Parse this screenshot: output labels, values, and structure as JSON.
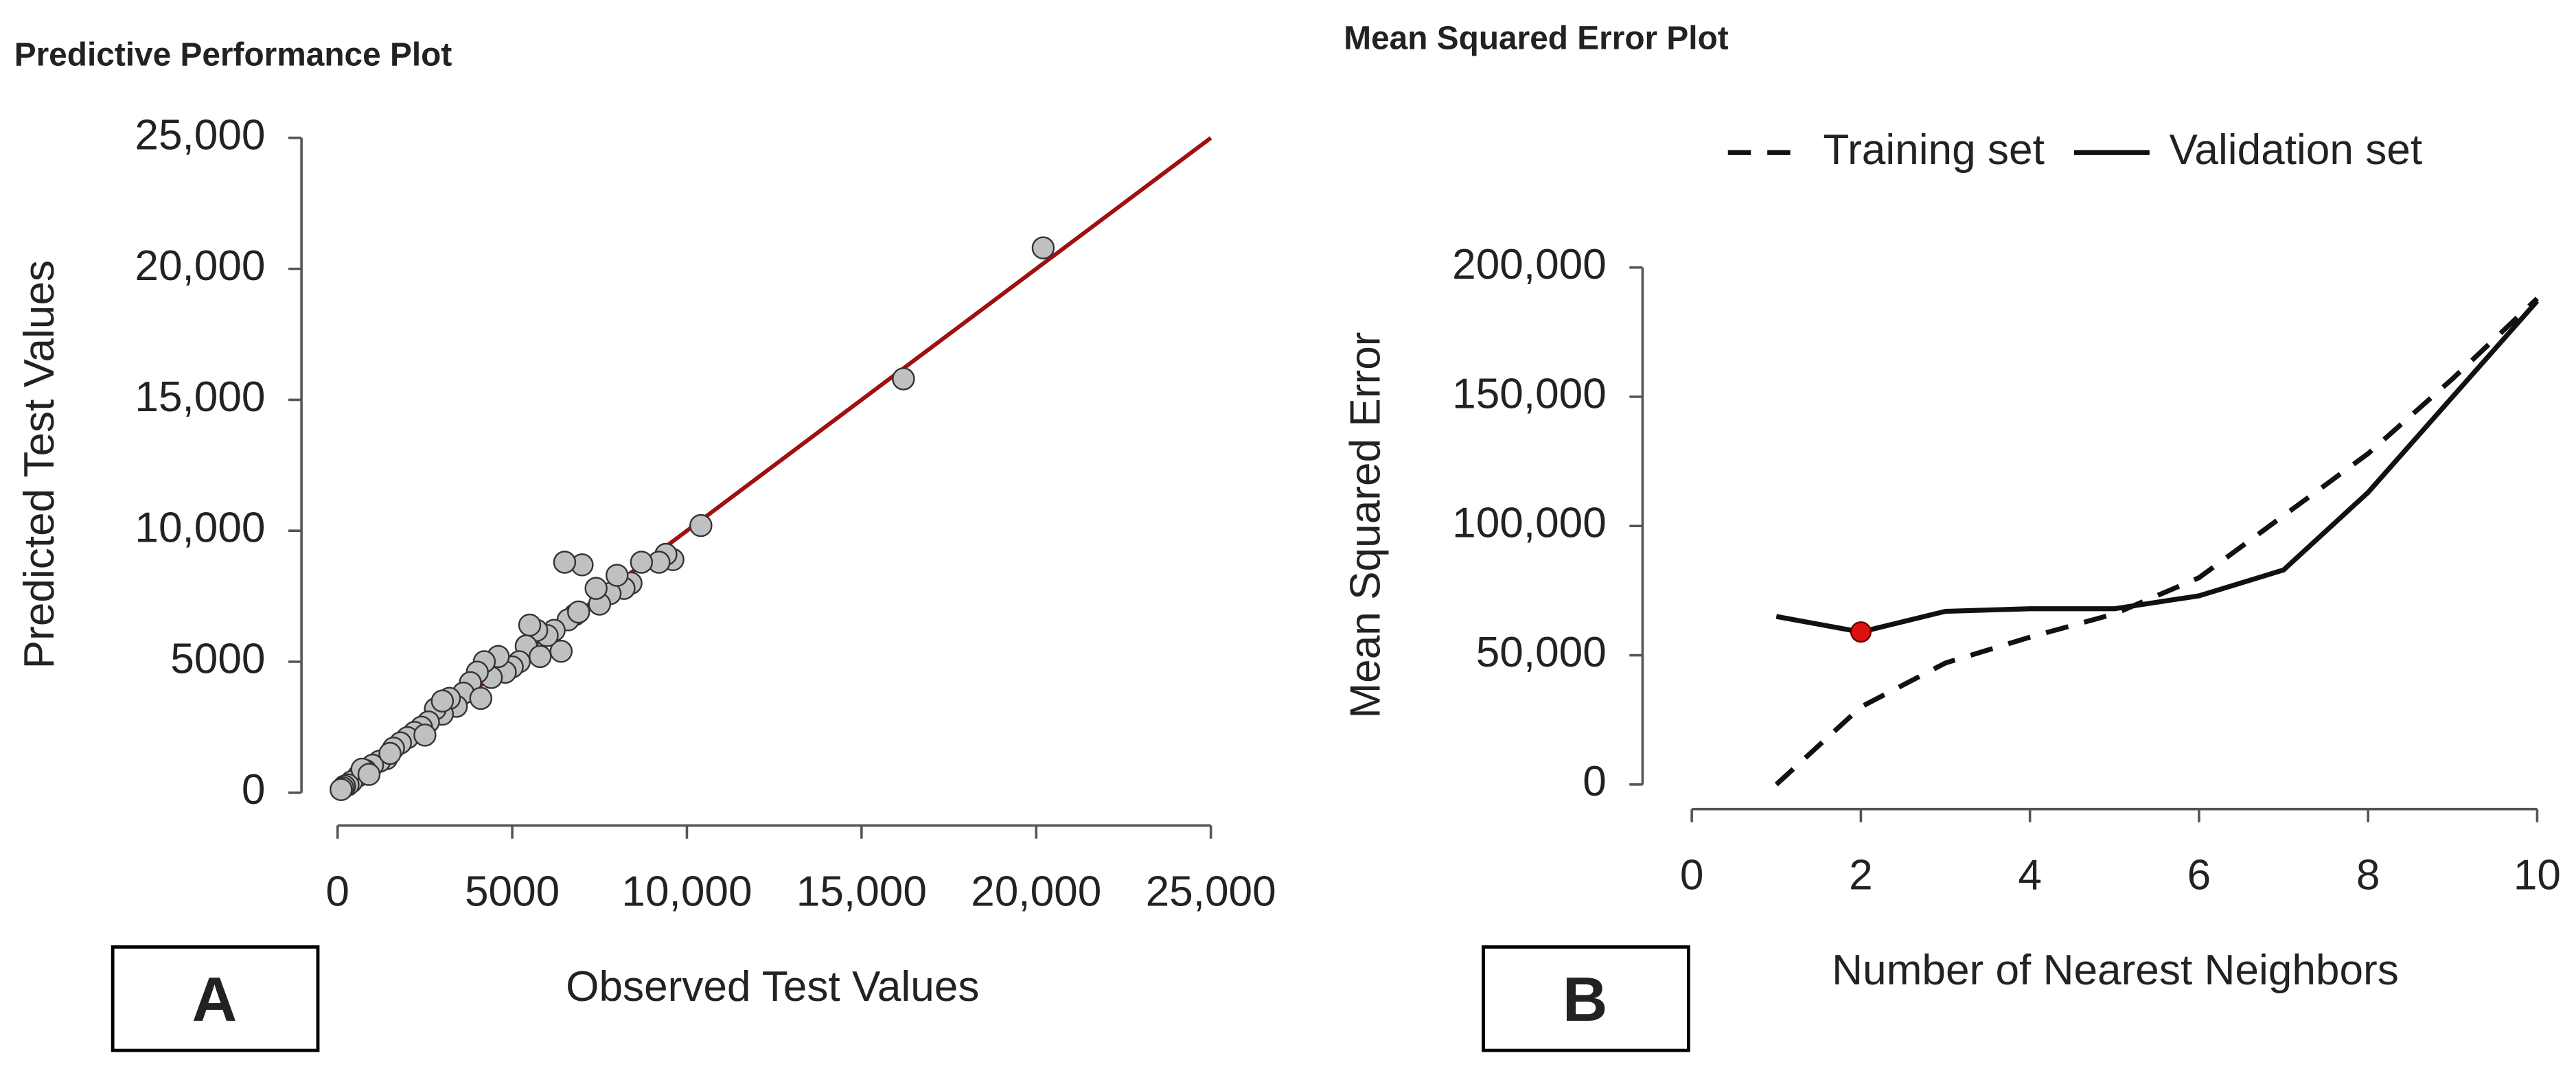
{
  "chart_data": [
    {
      "type": "scatter",
      "title": "Predictive Performance Plot",
      "panel_label": "A",
      "x_label": "Observed Test Values",
      "y_label": "Predicted Test Values",
      "x": [
        20200,
        16200,
        10400,
        9600,
        9400,
        9200,
        8700,
        8400,
        8200,
        7800,
        7500,
        7400,
        7000,
        6800,
        6500,
        6600,
        6400,
        6200,
        6000,
        5700,
        5500,
        5400,
        5200,
        5000,
        4800,
        4600,
        4400,
        4200,
        4000,
        3800,
        3600,
        3400,
        3200,
        3000,
        2800,
        2600,
        2400,
        2200,
        2000,
        1800,
        1600,
        1400,
        1200,
        1000,
        800,
        600,
        400,
        300,
        200,
        150,
        100,
        3000,
        2500,
        1500,
        700,
        900,
        4100,
        5800,
        6900,
        8000
      ],
      "y": [
        20800,
        15800,
        10200,
        8900,
        9100,
        8800,
        8800,
        8000,
        7800,
        7600,
        7200,
        7800,
        8700,
        6800,
        8800,
        6600,
        5400,
        6200,
        6000,
        6200,
        6400,
        5600,
        5000,
        4800,
        4600,
        5200,
        4400,
        5000,
        4600,
        4200,
        3800,
        3300,
        3600,
        3000,
        3200,
        2700,
        2500,
        2300,
        2100,
        1900,
        1700,
        1300,
        1200,
        1050,
        850,
        650,
        420,
        300,
        250,
        180,
        120,
        3500,
        2200,
        1500,
        900,
        700,
        3600,
        5200,
        6900,
        8300
      ],
      "color": "#c0c0c0",
      "reference_line": {
        "x": [
          0,
          25000
        ],
        "y": [
          0,
          25000
        ],
        "color": "#a01010"
      },
      "xlim": [
        0,
        25000
      ],
      "ylim": [
        0,
        25000
      ],
      "xticks": [
        0,
        5000,
        {
          "value": 10000,
          "label": "10,000"
        },
        {
          "value": 15000,
          "label": "15,000"
        },
        {
          "value": 20000,
          "label": "20,000"
        },
        {
          "value": 25000,
          "label": "25,000"
        }
      ],
      "yticks": [
        0,
        5000,
        {
          "value": 10000,
          "label": "10,000"
        },
        {
          "value": 15000,
          "label": "15,000"
        },
        {
          "value": 20000,
          "label": "20,000"
        },
        {
          "value": 25000,
          "label": "25,000"
        }
      ]
    },
    {
      "type": "line",
      "title": "Mean Squared Error Plot",
      "panel_label": "B",
      "x_label": "Number of Nearest Neighbors",
      "y_label": "Mean Squared Error",
      "x": [
        1,
        2,
        3,
        4,
        5,
        6,
        7,
        8,
        9,
        10
      ],
      "series": [
        {
          "name": "Training set",
          "color": "#111111",
          "line_style": "dashed",
          "values": [
            0,
            30000,
            47000,
            57000,
            66000,
            80000,
            104000,
            128000,
            157000,
            188000
          ]
        },
        {
          "name": "Validation set",
          "color": "#111111",
          "line_style": "solid",
          "values": [
            65000,
            59000,
            67000,
            68000,
            68000,
            73000,
            83000,
            113000,
            150000,
            187000
          ]
        }
      ],
      "highlight": {
        "series": 1,
        "index": 1,
        "color": "#e01010"
      },
      "legend": "top",
      "xlim": [
        0,
        10
      ],
      "ylim": [
        0,
        200000
      ],
      "xticks": [
        0,
        2,
        4,
        6,
        8,
        10
      ],
      "yticks": [
        0,
        {
          "value": 50000,
          "label": "50,000"
        },
        {
          "value": 100000,
          "label": "100,000"
        },
        {
          "value": 150000,
          "label": "150,000"
        },
        {
          "value": 200000,
          "label": "200,000"
        }
      ]
    }
  ]
}
